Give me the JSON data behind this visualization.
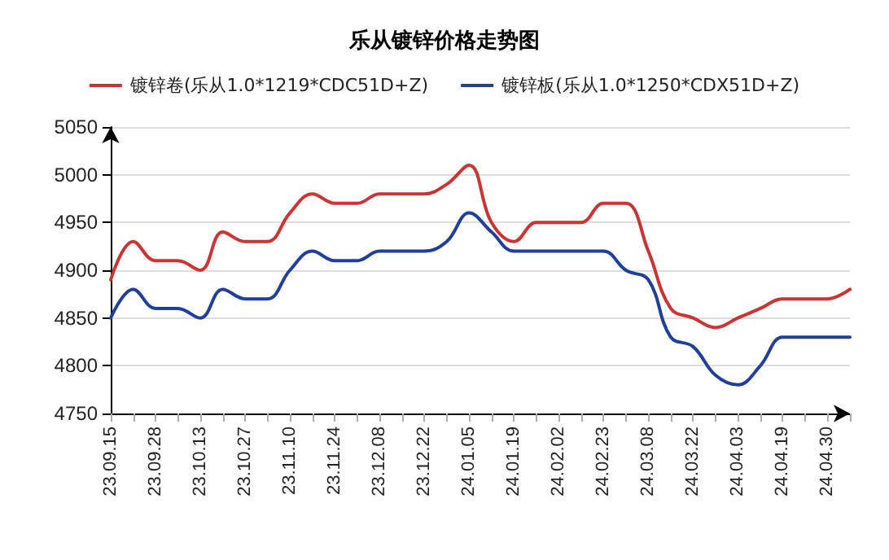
{
  "chart_data": {
    "type": "line",
    "title": "乐从镀锌价格走势图",
    "categories": [
      "23.09.15",
      null,
      "23.09.28",
      null,
      "23.10.13",
      null,
      "23.10.27",
      null,
      "23.11.10",
      null,
      "23.11.24",
      null,
      "23.12.08",
      null,
      "23.12.22",
      null,
      "24.01.05",
      null,
      "24.01.19",
      null,
      "24.02.02",
      null,
      "24.02.23",
      null,
      "24.03.08",
      null,
      "24.03.22",
      null,
      "24.04.03",
      null,
      "24.04.19",
      null,
      "24.04.30",
      null
    ],
    "series": [
      {
        "name": "镀锌卷(乐从1.0*1219*CDC51D+Z)",
        "color": "#cc3333",
        "values": [
          4890,
          4930,
          4910,
          4910,
          4900,
          4940,
          4930,
          4930,
          4960,
          4980,
          4970,
          4970,
          4980,
          4980,
          4980,
          4990,
          5010,
          4950,
          4930,
          4950,
          4950,
          4950,
          4970,
          4970,
          4920,
          4860,
          4850,
          4840,
          4850,
          4860,
          4870,
          4870,
          4870,
          4880
        ]
      },
      {
        "name": "镀锌板(乐从1.0*1250*CDX51D+Z)",
        "color": "#1f3f99",
        "values": [
          4850,
          4880,
          4860,
          4860,
          4850,
          4880,
          4870,
          4870,
          4900,
          4920,
          4910,
          4910,
          4920,
          4920,
          4920,
          4930,
          4960,
          4940,
          4920,
          4920,
          4920,
          4920,
          4920,
          4900,
          4890,
          4830,
          4820,
          4790,
          4780,
          4800,
          4830,
          4830,
          4830,
          4830
        ]
      }
    ],
    "ylim": [
      4750,
      5050
    ],
    "yticks": [
      4750,
      4800,
      4850,
      4900,
      4950,
      5000,
      5050
    ],
    "grid": "y",
    "legend": "top",
    "marker": "none",
    "line_style": "solid"
  }
}
